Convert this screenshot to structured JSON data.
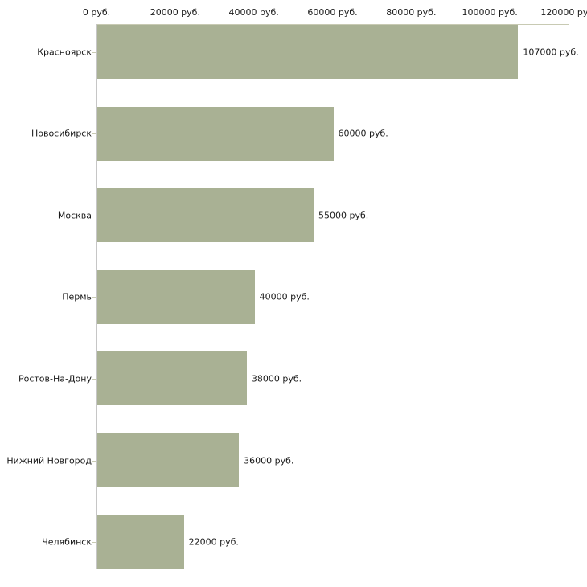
{
  "chart_data": {
    "type": "bar",
    "orientation": "horizontal",
    "title": "",
    "categories": [
      "Красноярск",
      "Новосибирск",
      "Москва",
      "Пермь",
      "Ростов-На-Дону",
      "Нижний Новгород",
      "Челябинск"
    ],
    "values": [
      107000,
      60000,
      55000,
      40000,
      38000,
      36000,
      22000
    ],
    "value_labels": [
      "107000 руб.",
      "60000 руб.",
      "55000 руб.",
      "40000 руб.",
      "38000 руб.",
      "36000 руб.",
      "22000 руб."
    ],
    "x_axis": {
      "position": "top",
      "min": 0,
      "max": 120000,
      "ticks": [
        0,
        20000,
        40000,
        60000,
        80000,
        100000,
        120000
      ],
      "tick_labels": [
        "0 руб.",
        "20000 руб.",
        "40000 руб.",
        "60000 руб.",
        "80000 руб.",
        "100000 руб.",
        "120000 руб."
      ]
    },
    "ylabel": "",
    "xlabel": "",
    "legend": null,
    "grid": false,
    "colors": {
      "bar": "#a9b194",
      "top_axis_line": "#c8cab3",
      "tick": "#c8cab3",
      "left_axis_line": "#c6c6c6",
      "text": "#1a1a1a",
      "background": "#ffffff"
    }
  }
}
